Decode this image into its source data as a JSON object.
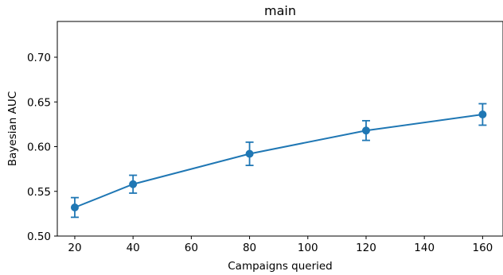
{
  "chart_data": {
    "type": "line",
    "title": "main",
    "xlabel": "Campaigns queried",
    "ylabel": "Bayesian AUC",
    "xlim": [
      14,
      167
    ],
    "ylim": [
      0.5,
      0.74
    ],
    "xticks": [
      20,
      40,
      60,
      80,
      100,
      120,
      140,
      160
    ],
    "xtick_labels": [
      "20",
      "40",
      "60",
      "80",
      "100",
      "120",
      "140",
      "160"
    ],
    "yticks": [
      0.5,
      0.55,
      0.6,
      0.65,
      0.7
    ],
    "ytick_labels": [
      "0.50",
      "0.55",
      "0.60",
      "0.65",
      "0.70"
    ],
    "grid": false,
    "series": [
      {
        "x": [
          20,
          40,
          80,
          120,
          160
        ],
        "y": [
          0.532,
          0.558,
          0.592,
          0.618,
          0.636
        ],
        "yerr": [
          0.011,
          0.01,
          0.013,
          0.011,
          0.012
        ],
        "color": "#1f77b4"
      }
    ]
  }
}
